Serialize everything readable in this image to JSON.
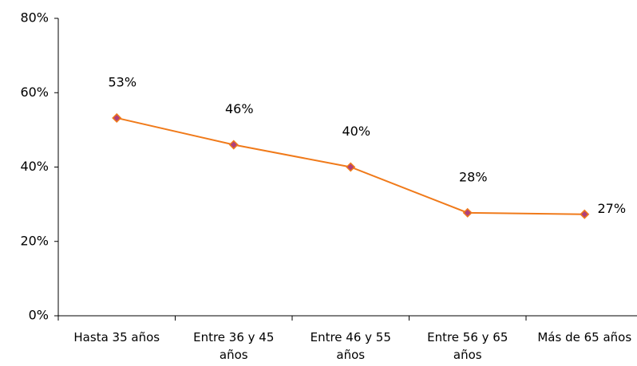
{
  "chart_data": {
    "type": "line",
    "categories": [
      "Hasta 35 años",
      "Entre 36 y 45 años",
      "Entre 46 y 55 años",
      "Entre 56 y 65 años",
      "Más de 65 años"
    ],
    "values": [
      53.2,
      46,
      40,
      27.7,
      27.3
    ],
    "value_labels": [
      "53%",
      "46%",
      "40%",
      "28%",
      "27%"
    ],
    "color": "#f07a1a",
    "marker_color": "#b0407a",
    "ylim": [
      0,
      80
    ],
    "yticks": [
      {
        "value": 0,
        "label": "0%"
      },
      {
        "value": 20,
        "label": "20%"
      },
      {
        "value": 40,
        "label": "40%"
      },
      {
        "value": 60,
        "label": "60%"
      },
      {
        "value": 80,
        "label": "80%"
      }
    ]
  }
}
